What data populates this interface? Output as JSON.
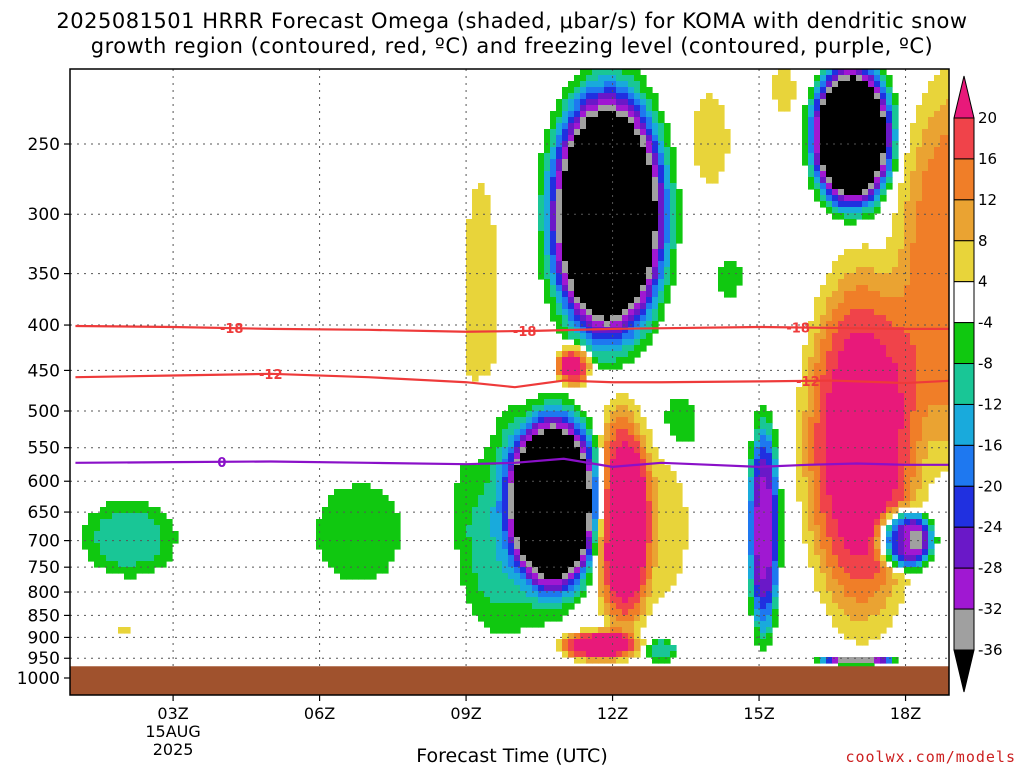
{
  "title": {
    "line1": "2025081501 HRRR Forecast Omega (shaded, μbar/s) for KOMA with dendritic snow",
    "line2": "growth region (contoured, red, ºC) and freezing level (contoured, purple, ºC)"
  },
  "xlabel": "Forecast Time (UTC)",
  "credit": "coolwx.com/models",
  "chart_data": {
    "type": "heatmap",
    "title": "2025081501 HRRR Forecast Omega (shaded, μbar/s) for KOMA with dendritic snow growth region (contoured, red, ºC) and freezing level (contoured, purple, ºC)",
    "xlabel": "Forecast Time (UTC)",
    "ylabel": "",
    "xlim": [
      1,
      19
    ],
    "ylim": [
      1010,
      200
    ],
    "y_scale": "log-pressure",
    "grid": true,
    "x_ticks": [
      {
        "hour": 3,
        "label": "03Z",
        "sub": [
          "15AUG",
          "2025"
        ]
      },
      {
        "hour": 6,
        "label": "06Z"
      },
      {
        "hour": 9,
        "label": "09Z"
      },
      {
        "hour": 12,
        "label": "12Z"
      },
      {
        "hour": 15,
        "label": "15Z"
      },
      {
        "hour": 18,
        "label": "18Z"
      }
    ],
    "y_ticks": [
      250,
      300,
      350,
      400,
      450,
      500,
      550,
      600,
      650,
      700,
      750,
      800,
      850,
      900,
      950,
      1000
    ],
    "ground_pressure": 970,
    "colorbar": {
      "levels": [
        20,
        16,
        12,
        8,
        4,
        -4,
        -8,
        -12,
        -16,
        -20,
        -24,
        -28,
        -32,
        -36
      ],
      "bands": [
        {
          "label": ">20",
          "color": "#e8197a"
        },
        {
          "label": "16 to 20",
          "color": "#f0434a"
        },
        {
          "label": "12 to 16",
          "color": "#f07e28"
        },
        {
          "label": "8 to 12",
          "color": "#eaa332"
        },
        {
          "label": "4 to 8",
          "color": "#e8d43a"
        },
        {
          "label": "-4 to 4",
          "color": "#ffffff"
        },
        {
          "label": "-8 to -4",
          "color": "#10c810"
        },
        {
          "label": "-12 to -8",
          "color": "#19c696"
        },
        {
          "label": "-16 to -12",
          "color": "#19aadc"
        },
        {
          "label": "-20 to -16",
          "color": "#1e78f0"
        },
        {
          "label": "-24 to -20",
          "color": "#2030e0"
        },
        {
          "label": "-28 to -24",
          "color": "#6a18c8"
        },
        {
          "label": "-32 to -28",
          "color": "#a018d2"
        },
        {
          "label": "-36 to -32",
          "color": "#a0a0a0"
        },
        {
          "label": "<-36",
          "color": "#000000"
        }
      ]
    },
    "omega_features": [
      {
        "hour": 2.1,
        "p_lo": 620,
        "p_hi": 780,
        "hw": 1.1,
        "peak": -10
      },
      {
        "hour": 2.0,
        "p_lo": 870,
        "p_hi": 890,
        "hw": 0.25,
        "peak": 5
      },
      {
        "hour": 6.8,
        "p_lo": 575,
        "p_hi": 820,
        "hw": 1.2,
        "peak": -6
      },
      {
        "hour": 9.5,
        "p_lo": 440,
        "p_hi": 920,
        "hw": 0.9,
        "peak": -6
      },
      {
        "hour": 10.8,
        "p_lo": 495,
        "p_hi": 810,
        "hw": 1.0,
        "peak": -60
      },
      {
        "hour": 10.2,
        "p_lo": 500,
        "p_hi": 950,
        "hw": 1.4,
        "peak": -6
      },
      {
        "hour": 9.3,
        "p_lo": 240,
        "p_hi": 650,
        "hw": 0.5,
        "peak": 6
      },
      {
        "hour": 11.9,
        "p_lo": 210,
        "p_hi": 430,
        "hw": 1.3,
        "peak": -60
      },
      {
        "hour": 11.2,
        "p_lo": 420,
        "p_hi": 470,
        "hw": 0.4,
        "peak": 24
      },
      {
        "hour": 12.2,
        "p_lo": 480,
        "p_hi": 920,
        "hw": 0.65,
        "peak": 24
      },
      {
        "hour": 11.7,
        "p_lo": 880,
        "p_hi": 960,
        "hw": 0.9,
        "peak": 24
      },
      {
        "hour": 12.8,
        "p_lo": 520,
        "p_hi": 880,
        "hw": 1.0,
        "peak": 6
      },
      {
        "hour": 13.0,
        "p_lo": 900,
        "p_hi": 960,
        "hw": 0.35,
        "peak": -12
      },
      {
        "hour": 13.4,
        "p_lo": 470,
        "p_hi": 560,
        "hw": 0.45,
        "peak": -6
      },
      {
        "hour": 14.0,
        "p_lo": 210,
        "p_hi": 290,
        "hw": 0.5,
        "peak": 6
      },
      {
        "hour": 15.1,
        "p_lo": 500,
        "p_hi": 920,
        "hw": 0.35,
        "peak": -30
      },
      {
        "hour": 14.4,
        "p_lo": 330,
        "p_hi": 380,
        "hw": 0.3,
        "peak": -6
      },
      {
        "hour": 15.5,
        "p_lo": 200,
        "p_hi": 235,
        "hw": 0.3,
        "peak": 6
      },
      {
        "hour": 16.9,
        "p_lo": 200,
        "p_hi": 300,
        "hw": 0.9,
        "peak": -60
      },
      {
        "hour": 17.1,
        "p_lo": 330,
        "p_hi": 900,
        "hw": 1.3,
        "peak": 24
      },
      {
        "hour": 18.0,
        "p_lo": 640,
        "p_hi": 760,
        "hw": 0.6,
        "peak": -40
      },
      {
        "hour": 17.0,
        "p_lo": 945,
        "p_hi": 965,
        "hw": 0.8,
        "peak": -36
      },
      {
        "hour": 19.0,
        "p_lo": 200,
        "p_hi": 600,
        "hw": 1.3,
        "peak": 16
      }
    ],
    "contours": [
      {
        "level": -18,
        "color": "#ee3a3a",
        "label": "-18",
        "hours": [
          1,
          3,
          5,
          7,
          9,
          10.5,
          12,
          13.5,
          15,
          16.5,
          18,
          19
        ],
        "p": [
          401,
          402,
          404,
          405,
          407,
          406,
          404,
          403,
          402,
          403,
          404,
          404
        ],
        "label_hours": [
          4.2,
          10.2,
          15.8
        ]
      },
      {
        "level": -12,
        "color": "#ee3a3a",
        "label": "-12",
        "hours": [
          1,
          3,
          5,
          7,
          9,
          10,
          11,
          12,
          13,
          15,
          16.5,
          18,
          19
        ],
        "p": [
          458,
          456,
          454,
          458,
          464,
          470,
          462,
          464,
          464,
          463,
          462,
          465,
          462
        ],
        "label_hours": [
          5.0,
          16.0
        ]
      },
      {
        "level": 0,
        "color": "#8a10c8",
        "label": "0",
        "hours": [
          1,
          3,
          5,
          7,
          9,
          10,
          11,
          12,
          13,
          14,
          15,
          16,
          17,
          18,
          19
        ],
        "p": [
          572,
          571,
          570,
          572,
          574,
          572,
          566,
          578,
          572,
          575,
          578,
          575,
          573,
          575,
          575
        ],
        "label_hours": [
          4.0
        ]
      }
    ]
  }
}
